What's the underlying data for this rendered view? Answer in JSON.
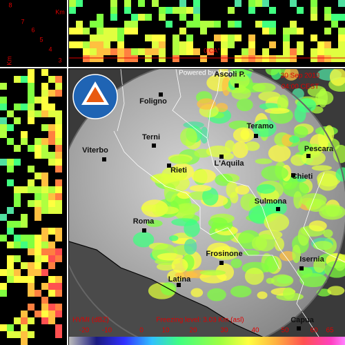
{
  "header": {
    "powered_by": "Powered by Himet",
    "date": "30 Sep 2013",
    "time": "04:00 CEST"
  },
  "cross_section": {
    "unit": "Km",
    "heights": [
      "8",
      "7",
      "6",
      "5",
      "4",
      "3"
    ],
    "freezing_label": "0 CA°"
  },
  "side_section": {
    "unit": "Km"
  },
  "cities": [
    {
      "label": "Foligno"
    },
    {
      "label": "Ascoli P."
    },
    {
      "label": "Teramo"
    },
    {
      "label": "Pescara"
    },
    {
      "label": "Chieti"
    },
    {
      "label": "L'Aquila"
    },
    {
      "label": "Terni"
    },
    {
      "label": "Rieti"
    },
    {
      "label": "Viterbo"
    },
    {
      "label": "Sulmona"
    },
    {
      "label": "Roma"
    },
    {
      "label": "Frosinone"
    },
    {
      "label": "Isernia"
    },
    {
      "label": "Latina"
    },
    {
      "label": "Capua"
    }
  ],
  "legend": {
    "title": "HVMI (dBZ)",
    "freezing_level": "Freezing level: 3.03 Km (asl)",
    "ticks": [
      -20,
      -10,
      0,
      10,
      20,
      30,
      40,
      50,
      60,
      65
    ]
  }
}
